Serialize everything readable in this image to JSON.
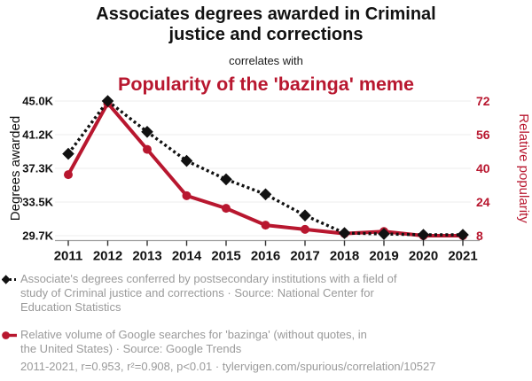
{
  "header": {
    "title_lines": [
      "Associates degrees awarded in Criminal",
      "justice and corrections"
    ],
    "connector": "correlates with",
    "subtitle": "Popularity of the 'bazinga' meme"
  },
  "colors": {
    "accent_red": "#b8172f",
    "series_black": "#111111",
    "legend_gray": "#9a9a9a",
    "gridline": "#ececec",
    "axis_line": "#9e9e9e",
    "tick_mark": "#333333"
  },
  "chart_data": {
    "type": "line",
    "x": [
      2011,
      2012,
      2013,
      2014,
      2015,
      2016,
      2017,
      2018,
      2019,
      2020,
      2021
    ],
    "x_tick_labels": [
      "2011",
      "2012",
      "2013",
      "2014",
      "2015",
      "2016",
      "2017",
      "2018",
      "2019",
      "2020",
      "2021"
    ],
    "left_axis": {
      "label": "Degrees awarded",
      "tick_labels": [
        "45.0K",
        "41.2K",
        "37.3K",
        "33.5K",
        "29.7K"
      ],
      "tick_values": [
        45000,
        41200,
        37300,
        33500,
        29700
      ],
      "min": 29700,
      "max": 45000
    },
    "right_axis": {
      "label": "Relative popularity",
      "tick_labels": [
        "72",
        "56",
        "40",
        "24",
        "8"
      ],
      "tick_values": [
        72,
        56,
        40,
        24,
        8
      ],
      "min": 8,
      "max": 72
    },
    "grid": "horizontal",
    "legend_position": "bottom-left",
    "series": [
      {
        "name": "Associate's degrees conferred by postsecondary institutions with a field of study of Criminal justice and corrections",
        "axis": "left",
        "line_style": "dotted",
        "marker": "diamond",
        "color": "#111111",
        "values": [
          39000,
          45000,
          41500,
          38200,
          36100,
          34400,
          32000,
          30000,
          29900,
          29800,
          29800
        ]
      },
      {
        "name": "Relative volume of Google searches for 'bazinga' (without quotes, in the United States)",
        "axis": "right",
        "line_style": "solid",
        "marker": "circle",
        "color": "#b8172f",
        "values": [
          37,
          71,
          49,
          27,
          21,
          13,
          11,
          9,
          10,
          8,
          8
        ]
      }
    ]
  },
  "legend": {
    "entries": [
      {
        "icon": "black-diamond-dotted-line-icon",
        "lines": [
          "Associate's degrees conferred by postsecondary institutions with a field of",
          "study of Criminal justice and corrections · Source: National Center for",
          "Education Statistics"
        ]
      },
      {
        "icon": "red-circle-solid-line-icon",
        "lines": [
          "Relative volume of Google searches for 'bazinga' (without quotes, in",
          "the United States) · Source: Google Trends"
        ]
      }
    ]
  },
  "footer": {
    "stats": "2011-2021, r=0.953, r²=0.908, p<0.01 · tylervigen.com/spurious/correlation/10527"
  }
}
